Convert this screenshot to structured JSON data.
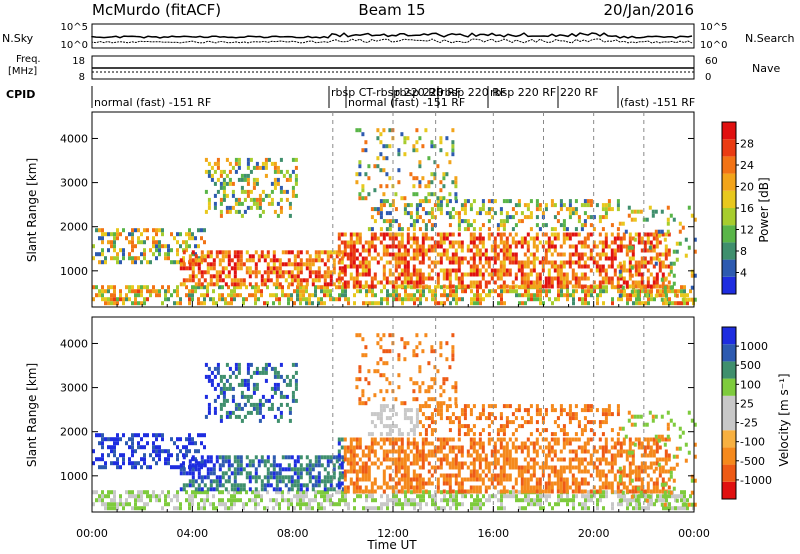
{
  "header": {
    "station": "McMurdo (fitACF)",
    "beam": "Beam 15",
    "date": "20/Jan/2016"
  },
  "strip_labels": {
    "nsky": "N.Sky",
    "nsky_ticks": [
      "10^5",
      "10^0"
    ],
    "freq": "Freq.",
    "freq_unit": "[MHz]",
    "freq_ticks": [
      "18",
      "8"
    ],
    "cpid": "CPID",
    "nsearch": "N.Search",
    "nsearch_ticks": [
      "10^5",
      "10^0"
    ],
    "nave": "Nave",
    "nave_ticks": [
      "60",
      "0"
    ]
  },
  "cpid_labels": [
    {
      "text": "normal (fast) -151 RF",
      "row": 2
    },
    {
      "text": "rbsp CT-rbsp 220 RF",
      "row": 1
    },
    {
      "text": "normal (fast) -151 RF",
      "row": 2
    },
    {
      "text": "rbsp 220 RF",
      "row": 1
    },
    {
      "text": "rbsp 220 RF",
      "row": 1
    },
    {
      "text": "rbsp 220 RF",
      "row": 1
    },
    {
      "text": "220 RF",
      "row": 1
    },
    {
      "text": "(fast) -151 RF",
      "row": 2
    }
  ],
  "chart_data": [
    {
      "type": "heatmap",
      "name": "power",
      "xlabel": "",
      "ylabel": "Slant Range [km]",
      "xlim_hours": [
        0,
        24
      ],
      "ylim": [
        180,
        4600
      ],
      "yticks": [
        1000,
        2000,
        3000,
        4000
      ],
      "colorbar": {
        "label": "Power [dB]",
        "ticks": [
          4,
          8,
          12,
          16,
          20,
          24,
          28
        ],
        "range": [
          0,
          32
        ],
        "colors": [
          "#1e2de0",
          "#2d5ab0",
          "#3f8f6d",
          "#59b548",
          "#a7cd2e",
          "#e8c81e",
          "#f2a41a",
          "#f27315",
          "#ea3b12",
          "#e01010"
        ]
      }
    },
    {
      "type": "heatmap",
      "name": "velocity",
      "xlabel": "Time UT",
      "ylabel": "Slant Range [km]",
      "xlim_hours": [
        0,
        24
      ],
      "ylim": [
        180,
        4600
      ],
      "yticks": [
        1000,
        2000,
        3000,
        4000
      ],
      "xticks": [
        "00:00",
        "04:00",
        "08:00",
        "12:00",
        "16:00",
        "20:00",
        "00:00"
      ],
      "colorbar": {
        "label": "Velocity [m s⁻¹]",
        "ticks": [
          "1000",
          "500",
          "100",
          "25",
          "-25",
          "-100",
          "-500",
          "-1000"
        ],
        "range": [
          -1250,
          1250
        ],
        "colors": [
          "#e01010",
          "#ee5a15",
          "#f5891c",
          "#f7b040",
          "#c8c8c8",
          "#c8c8c8",
          "#7ecb3d",
          "#3f8f6d",
          "#2d5ab0",
          "#1e2de0"
        ]
      }
    }
  ],
  "dashed_hours": [
    9.6,
    12,
    13.7,
    16,
    18,
    20,
    22
  ]
}
